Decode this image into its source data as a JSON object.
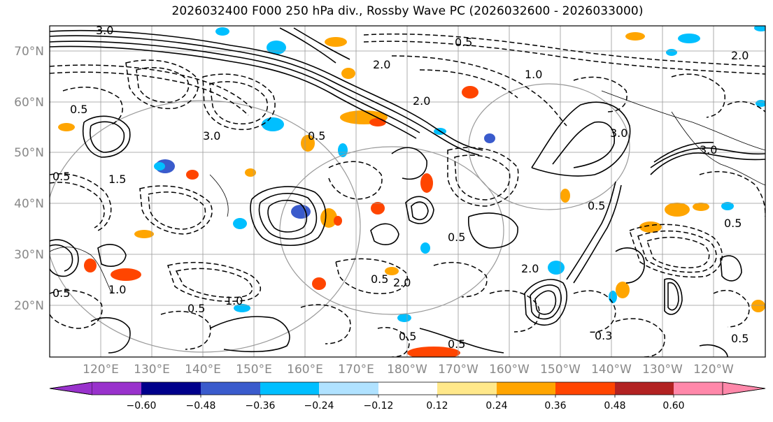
{
  "title": "2026032400 F000 250 hPa div., Rossby Wave PC (2026032600 - 2026033000)",
  "lat_labels": [
    "70°N",
    "60°N",
    "50°N",
    "40°N",
    "30°N",
    "20°N"
  ],
  "lon_labels": [
    "120°E",
    "130°E",
    "140°E",
    "150°E",
    "160°E",
    "170°E",
    "180°W",
    "170°W",
    "160°W",
    "150°W",
    "140°W",
    "130°W",
    "120°W"
  ],
  "colorbar": {
    "colors": [
      "#9932CC",
      "#00008B",
      "#3A5BCC",
      "#00BFFF",
      "#B0E2FF",
      "#FFFFFF",
      "#FFE88A",
      "#FFA500",
      "#FF4500",
      "#B22222",
      "#FF88AA"
    ],
    "tick_labels": [
      "−0.60",
      "−0.48",
      "−0.36",
      "−0.24",
      "−0.12",
      "0.12",
      "0.24",
      "0.36",
      "0.48",
      "0.60"
    ]
  },
  "contour_labels": [
    "3.0",
    "0.5",
    "3.0",
    "2.0",
    "1.0",
    "0.5",
    "1.5",
    "2.0",
    "0.5",
    "3.0",
    "0.5",
    "2.0",
    "0.5",
    "1.0",
    "0.5",
    "0.5",
    "2.0",
    "0.5",
    "0.3",
    "0.5",
    "3.0",
    "0.5",
    "0.5",
    "0.5",
    "1.0",
    "0.5",
    "2.0"
  ],
  "colors": {
    "grid": "#999999",
    "contour": "#000000",
    "label": "#888888"
  }
}
